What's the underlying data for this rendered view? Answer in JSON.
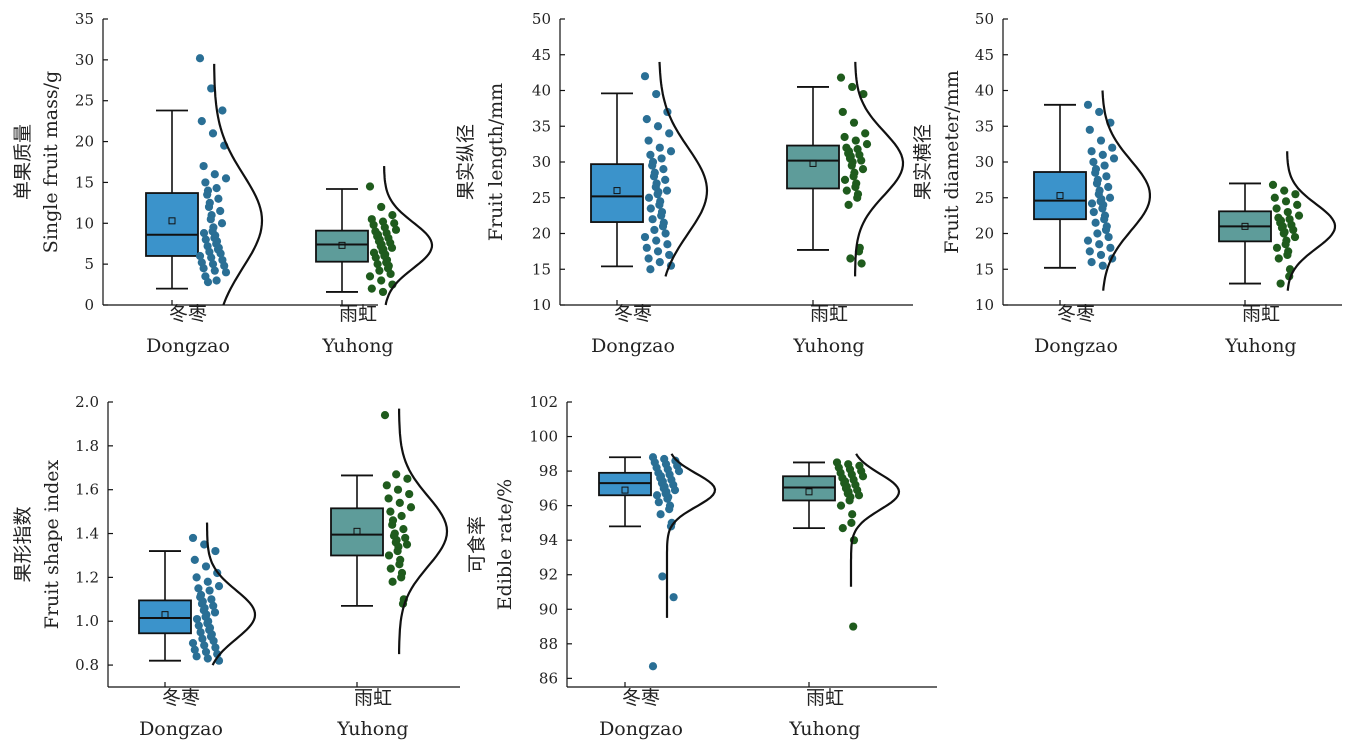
{
  "colors": {
    "dongzao_box": "#3b93cb",
    "yuhong_box": "#5e9c9a",
    "dongzao_points": "#2a6f95",
    "yuhong_points": "#1f5b1d",
    "line": "#111111"
  },
  "chart_data": [
    {
      "type": "boxplot",
      "ylabel_cn": "单果质量",
      "ylabel_en": "Single fruit mass/g",
      "ylim": [
        0,
        35
      ],
      "yticks": [
        0,
        5,
        10,
        15,
        20,
        25,
        30,
        35
      ],
      "categories": [
        {
          "cn": "冬枣",
          "en": "Dongzao"
        },
        {
          "cn": "雨虹",
          "en": "Yuhong"
        }
      ],
      "series": [
        {
          "min": 2.0,
          "q1": 6.0,
          "median": 8.6,
          "q3": 13.7,
          "max": 23.8,
          "mean": 10.3,
          "density_range": [
            0,
            29.5
          ],
          "points": [
            30.2,
            26.5,
            23.8,
            22.5,
            21.0,
            19.5,
            17.0,
            16.0,
            15.5,
            15.0,
            14.3,
            14.0,
            13.5,
            13.0,
            12.5,
            12.0,
            11.5,
            11.0,
            10.5,
            10.0,
            9.5,
            9.0,
            8.8,
            8.5,
            8.2,
            8.0,
            7.8,
            7.5,
            7.2,
            7.0,
            6.8,
            6.5,
            6.3,
            6.0,
            5.8,
            5.5,
            5.2,
            5.0,
            4.8,
            4.5,
            4.2,
            4.0,
            3.5,
            3.0,
            2.8
          ]
        },
        {
          "min": 1.6,
          "q1": 5.3,
          "median": 7.4,
          "q3": 9.1,
          "max": 14.2,
          "mean": 7.3,
          "density_range": [
            0,
            17
          ],
          "points": [
            14.5,
            12.0,
            11.0,
            10.5,
            10.2,
            10.0,
            9.8,
            9.5,
            9.2,
            9.0,
            8.8,
            8.6,
            8.4,
            8.2,
            8.0,
            7.8,
            7.6,
            7.4,
            7.2,
            7.0,
            6.8,
            6.6,
            6.4,
            6.2,
            6.0,
            5.8,
            5.5,
            5.2,
            5.0,
            4.8,
            4.5,
            4.2,
            3.8,
            3.5,
            3.0,
            2.5,
            2.0,
            1.6
          ]
        }
      ]
    },
    {
      "type": "boxplot",
      "ylabel_cn": "果实纵径",
      "ylabel_en": "Fruit length/mm",
      "ylim": [
        10,
        50
      ],
      "yticks": [
        10,
        15,
        20,
        25,
        30,
        35,
        40,
        45,
        50
      ],
      "categories": [
        {
          "cn": "冬枣",
          "en": "Dongzao"
        },
        {
          "cn": "雨虹",
          "en": "Yuhong"
        }
      ],
      "series": [
        {
          "min": 15.4,
          "q1": 21.6,
          "median": 25.2,
          "q3": 29.7,
          "max": 39.6,
          "mean": 26.0,
          "density_range": [
            14,
            44
          ],
          "points": [
            42.0,
            39.5,
            37.0,
            36.0,
            35.0,
            34.0,
            33.0,
            32.0,
            31.5,
            31.0,
            30.5,
            30.0,
            29.5,
            29.0,
            28.5,
            28.0,
            27.5,
            27.0,
            26.5,
            26.0,
            25.8,
            25.5,
            25.0,
            24.5,
            24.0,
            23.5,
            23.0,
            22.5,
            22.0,
            21.5,
            21.0,
            20.5,
            20.0,
            19.5,
            19.0,
            18.5,
            18.0,
            17.5,
            17.0,
            16.5,
            16.0,
            15.5,
            15.0
          ]
        },
        {
          "min": 17.7,
          "q1": 26.3,
          "median": 30.2,
          "q3": 32.3,
          "max": 40.5,
          "mean": 29.8,
          "density_range": [
            14,
            44
          ],
          "points": [
            41.8,
            40.5,
            39.5,
            37.0,
            35.5,
            34.0,
            33.5,
            33.0,
            32.5,
            32.0,
            31.8,
            31.5,
            31.2,
            31.0,
            30.8,
            30.5,
            30.2,
            30.0,
            29.5,
            29.0,
            28.5,
            28.0,
            27.5,
            27.0,
            26.5,
            26.0,
            25.5,
            25.0,
            24.0,
            18.0,
            17.5,
            16.5,
            15.8
          ]
        }
      ]
    },
    {
      "type": "boxplot",
      "ylabel_cn": "果实横径",
      "ylabel_en": "Fruit diameter/mm",
      "ylim": [
        10,
        50
      ],
      "yticks": [
        10,
        15,
        20,
        25,
        30,
        35,
        40,
        45,
        50
      ],
      "categories": [
        {
          "cn": "冬枣",
          "en": "Dongzao"
        },
        {
          "cn": "雨虹",
          "en": "Yuhong"
        }
      ],
      "series": [
        {
          "min": 15.2,
          "q1": 22.0,
          "median": 24.6,
          "q3": 28.6,
          "max": 38.0,
          "mean": 25.3,
          "density_range": [
            12,
            40
          ],
          "points": [
            38.0,
            37.0,
            35.5,
            34.5,
            33.0,
            32.0,
            31.5,
            31.0,
            30.5,
            30.0,
            29.5,
            29.0,
            28.5,
            28.0,
            27.5,
            27.0,
            26.5,
            26.0,
            25.5,
            25.0,
            24.8,
            24.5,
            24.2,
            24.0,
            23.5,
            23.0,
            22.5,
            22.0,
            21.5,
            21.0,
            20.5,
            20.0,
            19.5,
            19.0,
            18.5,
            18.0,
            17.5,
            17.0,
            16.5,
            16.0,
            15.5
          ]
        },
        {
          "min": 13.0,
          "q1": 18.9,
          "median": 21.0,
          "q3": 23.1,
          "max": 27.0,
          "mean": 21.0,
          "density_range": [
            12,
            31.5
          ],
          "points": [
            26.8,
            26.0,
            25.5,
            25.0,
            24.5,
            24.0,
            23.5,
            23.0,
            22.5,
            22.2,
            22.0,
            21.8,
            21.5,
            21.2,
            21.0,
            20.8,
            20.5,
            20.2,
            20.0,
            19.5,
            19.0,
            18.5,
            18.0,
            17.5,
            17.0,
            16.5,
            15.0,
            14.0,
            13.0
          ]
        }
      ]
    },
    {
      "type": "boxplot",
      "ylabel_cn": "果形指数",
      "ylabel_en": "Fruit shape index",
      "ylim": [
        0.7,
        2.0
      ],
      "yticks": [
        0.8,
        1.0,
        1.2,
        1.4,
        1.6,
        1.8,
        2.0
      ],
      "yticks_text": [
        "0.8",
        "1.0",
        "1.2",
        "1.4",
        "1.6",
        "1.8",
        "2.0"
      ],
      "categories": [
        {
          "cn": "冬枣",
          "en": "Dongzao"
        },
        {
          "cn": "雨虹",
          "en": "Yuhong"
        }
      ],
      "series": [
        {
          "min": 0.82,
          "q1": 0.945,
          "median": 1.015,
          "q3": 1.095,
          "max": 1.32,
          "mean": 1.03,
          "density_range": [
            0.8,
            1.45
          ],
          "points": [
            1.38,
            1.35,
            1.32,
            1.28,
            1.25,
            1.22,
            1.2,
            1.18,
            1.16,
            1.15,
            1.14,
            1.12,
            1.11,
            1.1,
            1.09,
            1.08,
            1.07,
            1.06,
            1.05,
            1.04,
            1.03,
            1.02,
            1.01,
            1.0,
            0.99,
            0.98,
            0.97,
            0.96,
            0.95,
            0.94,
            0.93,
            0.92,
            0.91,
            0.9,
            0.89,
            0.88,
            0.87,
            0.86,
            0.85,
            0.84,
            0.83,
            0.82
          ]
        },
        {
          "min": 1.07,
          "q1": 1.3,
          "median": 1.395,
          "q3": 1.515,
          "max": 1.665,
          "mean": 1.41,
          "density_range": [
            0.85,
            1.97
          ],
          "points": [
            1.94,
            1.67,
            1.65,
            1.62,
            1.6,
            1.58,
            1.56,
            1.54,
            1.52,
            1.5,
            1.48,
            1.46,
            1.44,
            1.42,
            1.4,
            1.39,
            1.38,
            1.37,
            1.36,
            1.35,
            1.34,
            1.32,
            1.3,
            1.28,
            1.26,
            1.24,
            1.22,
            1.2,
            1.18,
            1.1,
            1.08
          ]
        }
      ]
    },
    {
      "type": "boxplot",
      "ylabel_cn": "可食率",
      "ylabel_en": "Edible rate/%",
      "ylim": [
        85.5,
        102
      ],
      "yticks": [
        86,
        88,
        90,
        92,
        94,
        96,
        98,
        100,
        102
      ],
      "categories": [
        {
          "cn": "冬枣",
          "en": "Dongzao"
        },
        {
          "cn": "雨虹",
          "en": "Yuhong"
        }
      ],
      "series": [
        {
          "min": 94.8,
          "q1": 96.6,
          "median": 97.3,
          "q3": 97.9,
          "max": 98.8,
          "mean": 96.9,
          "density_range": [
            89.5,
            99
          ],
          "points": [
            98.8,
            98.7,
            98.6,
            98.5,
            98.4,
            98.3,
            98.2,
            98.1,
            98.0,
            97.9,
            97.8,
            97.7,
            97.6,
            97.5,
            97.4,
            97.3,
            97.2,
            97.1,
            97.0,
            96.9,
            96.8,
            96.7,
            96.6,
            96.5,
            96.4,
            96.2,
            96.0,
            95.8,
            95.5,
            95.0,
            94.8,
            91.9,
            90.7,
            86.7
          ]
        },
        {
          "min": 94.7,
          "q1": 96.3,
          "median": 97.05,
          "q3": 97.7,
          "max": 98.5,
          "mean": 96.8,
          "density_range": [
            91.3,
            99
          ],
          "points": [
            98.5,
            98.4,
            98.3,
            98.2,
            98.1,
            98.0,
            97.9,
            97.8,
            97.7,
            97.6,
            97.5,
            97.4,
            97.3,
            97.2,
            97.1,
            97.0,
            96.9,
            96.8,
            96.7,
            96.6,
            96.5,
            96.3,
            96.0,
            95.5,
            95.0,
            94.7,
            94.0,
            89.0
          ]
        }
      ]
    }
  ]
}
